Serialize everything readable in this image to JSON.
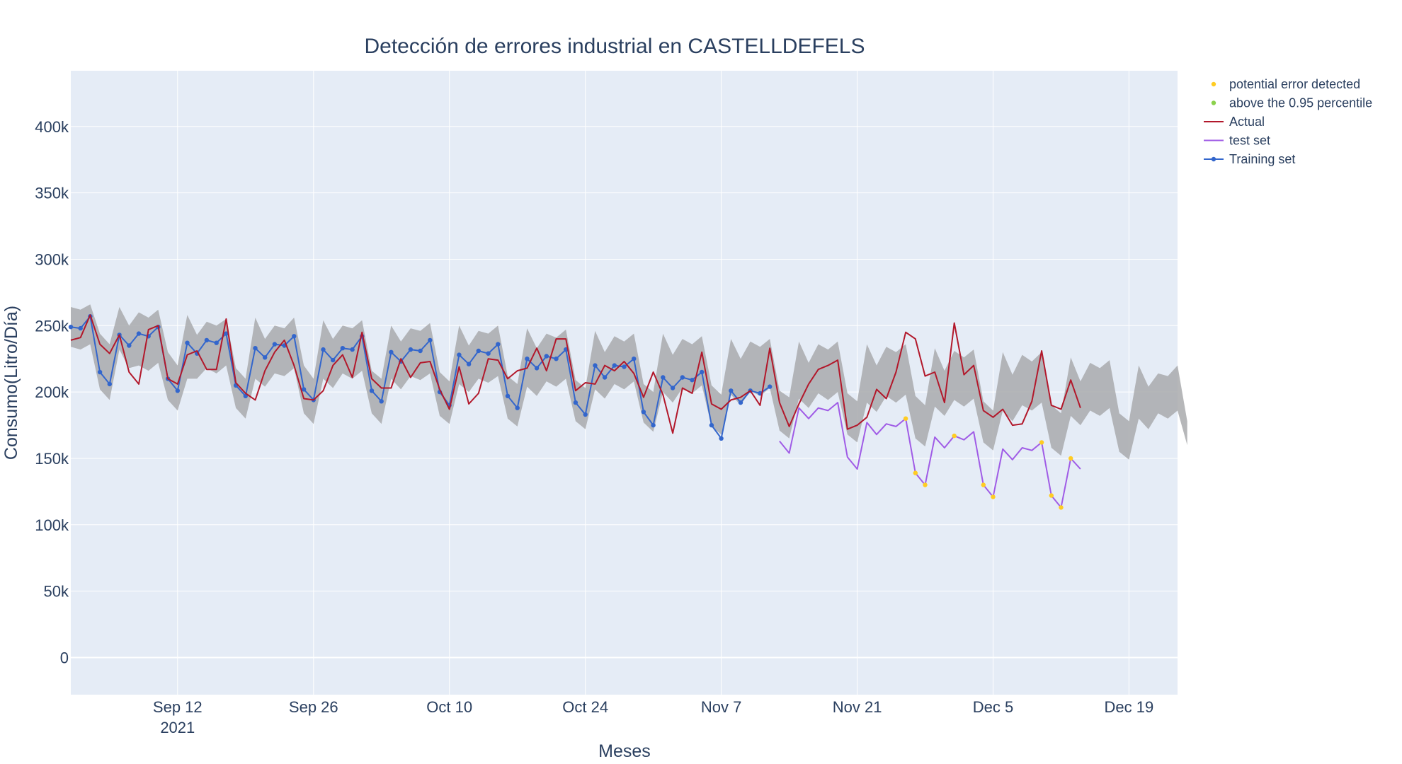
{
  "chart_data": {
    "type": "line",
    "title": "Detección de errores industrial en CASTELLDEFELS",
    "xlabel": "Meses",
    "ylabel": "Consumo(Litro/Día)",
    "xlim": [
      "2021-09-01",
      "2021-12-24"
    ],
    "ylim": [
      -28000,
      442000
    ],
    "x_ticks": [
      {
        "date": "2021-09-12",
        "label": "Sep 12",
        "sublabel": "2021"
      },
      {
        "date": "2021-09-26",
        "label": "Sep 26",
        "sublabel": ""
      },
      {
        "date": "2021-10-10",
        "label": "Oct 10",
        "sublabel": ""
      },
      {
        "date": "2021-10-24",
        "label": "Oct 24",
        "sublabel": ""
      },
      {
        "date": "2021-11-07",
        "label": "Nov 7",
        "sublabel": ""
      },
      {
        "date": "2021-11-21",
        "label": "Nov 21",
        "sublabel": ""
      },
      {
        "date": "2021-12-05",
        "label": "Dec 5",
        "sublabel": ""
      },
      {
        "date": "2021-12-19",
        "label": "Dec 19",
        "sublabel": ""
      }
    ],
    "y_ticks": [
      {
        "value": 0,
        "label": "0"
      },
      {
        "value": 50000,
        "label": "50k"
      },
      {
        "value": 100000,
        "label": "100k"
      },
      {
        "value": 150000,
        "label": "150k"
      },
      {
        "value": 200000,
        "label": "200k"
      },
      {
        "value": 250000,
        "label": "250k"
      },
      {
        "value": 300000,
        "label": "300k"
      },
      {
        "value": 350000,
        "label": "350k"
      },
      {
        "value": 400000,
        "label": "400k"
      }
    ],
    "grid": true,
    "legend_position": "top-right",
    "colors": {
      "plot_bg": "#e5ecf6",
      "grid": "#ffffff",
      "band": "#a9aaad",
      "actual": "#b2182b",
      "test": "#a05ce6",
      "training": "#3366cc",
      "error": "#ffcc22",
      "percentile": "#8bd14c"
    },
    "start_date": "2021-09-01",
    "band": {
      "name": "confidence interval",
      "upper": [
        264000,
        262000,
        266000,
        244000,
        236000,
        264000,
        250000,
        260000,
        256000,
        262000,
        230000,
        220000,
        258000,
        243000,
        253000,
        250000,
        255000,
        218000,
        210000,
        256000,
        240000,
        250000,
        248000,
        256000,
        220000,
        210000,
        254000,
        240000,
        250000,
        248000,
        254000,
        216000,
        210000,
        250000,
        238000,
        248000,
        246000,
        252000,
        215000,
        208000,
        250000,
        235000,
        246000,
        244000,
        250000,
        212000,
        206000,
        248000,
        233000,
        244000,
        241000,
        247000,
        209000,
        203000,
        246000,
        230000,
        242000,
        238000,
        244000,
        206000,
        200000,
        244000,
        228000,
        240000,
        236000,
        242000,
        205000,
        198000,
        240000,
        225000,
        238000,
        234000,
        240000,
        201000,
        196000,
        238000,
        222000,
        236000,
        232000,
        238000,
        199000,
        193000,
        236000,
        220000,
        234000,
        230000,
        236000,
        197000,
        190000,
        233000,
        216000,
        231000,
        226000,
        232000,
        193000,
        186000,
        230000,
        213000,
        228000,
        223000,
        230000,
        190000,
        184000,
        226000,
        208000,
        222000,
        218000,
        224000,
        184000,
        178000,
        220000,
        204000,
        214000,
        212000,
        220000,
        178000
      ],
      "lower": [
        234000,
        232000,
        236000,
        202000,
        194000,
        232000,
        218000,
        220000,
        216000,
        222000,
        194000,
        186000,
        210000,
        210000,
        218000,
        214000,
        220000,
        188000,
        180000,
        210000,
        204000,
        214000,
        212000,
        218000,
        184000,
        176000,
        210000,
        203000,
        214000,
        210000,
        216000,
        184000,
        176000,
        210000,
        202000,
        212000,
        209000,
        214000,
        182000,
        176000,
        206000,
        200000,
        210000,
        207000,
        212000,
        180000,
        174000,
        204000,
        197000,
        208000,
        204000,
        210000,
        178000,
        172000,
        202000,
        195000,
        206000,
        202000,
        208000,
        177000,
        170000,
        200000,
        192000,
        203000,
        199000,
        205000,
        174000,
        168000,
        198000,
        190000,
        201000,
        197000,
        203000,
        171000,
        165000,
        195000,
        188000,
        199000,
        194000,
        200000,
        168000,
        162000,
        192000,
        185000,
        197000,
        192000,
        198000,
        165000,
        159000,
        189000,
        182000,
        194000,
        189000,
        195000,
        162000,
        156000,
        186000,
        178000,
        190000,
        186000,
        192000,
        158000,
        152000,
        182000,
        175000,
        186000,
        182000,
        188000,
        155000,
        149000,
        180000,
        172000,
        184000,
        180000,
        186000,
        160000
      ]
    },
    "series": [
      {
        "name": "Actual",
        "values": [
          239000,
          241000,
          258000,
          236000,
          229000,
          243000,
          215000,
          206000,
          247000,
          250000,
          210000,
          206000,
          228000,
          231000,
          217000,
          217000,
          255000,
          207000,
          199000,
          194000,
          216000,
          230000,
          239000,
          220000,
          195000,
          194000,
          201000,
          220000,
          228000,
          211000,
          245000,
          210000,
          203000,
          203000,
          225000,
          211000,
          222000,
          223000,
          202000,
          187000,
          219000,
          191000,
          199000,
          225000,
          224000,
          210000,
          216000,
          218000,
          233000,
          216000,
          240000,
          240000,
          201000,
          207000,
          206000,
          220000,
          216000,
          223000,
          214000,
          196000,
          215000,
          198000,
          169000,
          203000,
          199000,
          230000,
          191000,
          187000,
          194000,
          196000,
          201000,
          190000,
          233000,
          192000,
          174000,
          191000,
          206000,
          217000,
          220000,
          224000,
          172000,
          175000,
          181000,
          202000,
          195000,
          215000,
          245000,
          240000,
          212000,
          215000,
          192000,
          252000,
          213000,
          220000,
          186000,
          181000,
          187000,
          175000,
          176000,
          193000,
          231000,
          190000,
          187000,
          209000,
          188000
        ]
      },
      {
        "name": "Training set",
        "values": [
          249000,
          248000,
          257000,
          215000,
          206000,
          243000,
          235000,
          244000,
          242000,
          249000,
          210000,
          201000,
          237000,
          229000,
          239000,
          237000,
          244000,
          205000,
          197000,
          233000,
          226000,
          236000,
          235000,
          242000,
          202000,
          194000,
          232000,
          224000,
          233000,
          232000,
          242000,
          201000,
          193000,
          230000,
          223000,
          232000,
          231000,
          239000,
          200000,
          190000,
          228000,
          221000,
          231000,
          229000,
          236000,
          197000,
          188000,
          225000,
          218000,
          227000,
          225000,
          232000,
          192000,
          183000,
          220000,
          211000,
          220000,
          219000,
          225000,
          185000,
          175000,
          211000,
          203000,
          211000,
          209000,
          215000,
          175000,
          165000,
          201000,
          192000,
          201000,
          199000,
          204000
        ]
      },
      {
        "name": "test set",
        "start_index": 73,
        "values": [
          163000,
          154000,
          188000,
          180000,
          188000,
          186000,
          192000,
          151000,
          142000,
          177000,
          168000,
          176000,
          174000,
          180000,
          139000,
          130000,
          166000,
          158000,
          167000,
          164000,
          170000,
          130000,
          121000,
          157000,
          149000,
          158000,
          156000,
          162000,
          122000,
          113000,
          150000,
          142000
        ]
      },
      {
        "name": "potential error detected",
        "points": [
          {
            "index": 86,
            "value": 180000
          },
          {
            "index": 87,
            "value": 139000
          },
          {
            "index": 88,
            "value": 130000
          },
          {
            "index": 91,
            "value": 167000
          },
          {
            "index": 94,
            "value": 130000
          },
          {
            "index": 95,
            "value": 121000
          },
          {
            "index": 100,
            "value": 162000
          },
          {
            "index": 101,
            "value": 122000
          },
          {
            "index": 102,
            "value": 113000
          },
          {
            "index": 103,
            "value": 150000
          }
        ]
      },
      {
        "name": "above the 0.95 percentile",
        "points": []
      }
    ],
    "legend": [
      {
        "key": "error",
        "label": "potential error detected",
        "kind": "marker"
      },
      {
        "key": "percentile",
        "label": "above the 0.95 percentile",
        "kind": "marker"
      },
      {
        "key": "actual",
        "label": "Actual",
        "kind": "line"
      },
      {
        "key": "test",
        "label": "test set",
        "kind": "line"
      },
      {
        "key": "training",
        "label": "Training set",
        "kind": "line-marker"
      }
    ]
  }
}
